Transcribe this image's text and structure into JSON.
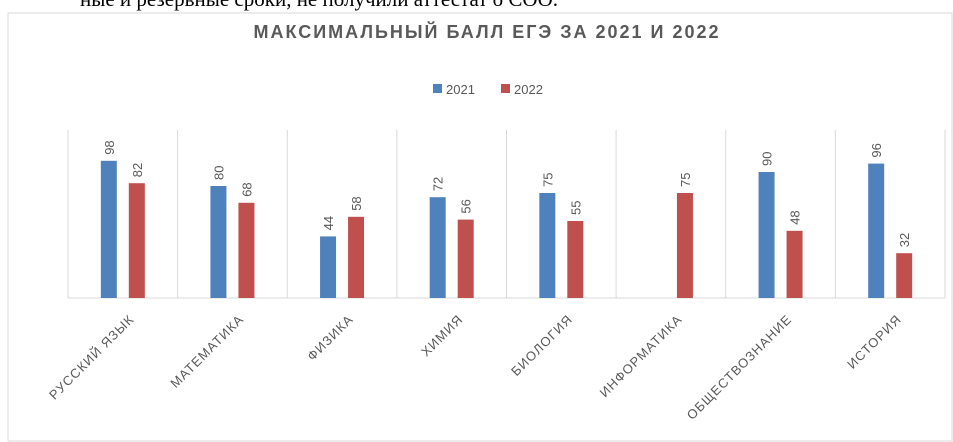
{
  "text_above": "ные и резервные сроки, не получили аттестат о СОО.",
  "chart_data": {
    "type": "bar",
    "title": "МАКСИМАЛЬНЫЙ БАЛЛ ЕГЭ ЗА 2021 И 2022",
    "categories": [
      "РУССКИЙ ЯЗЫК",
      "МАТЕМАТИКА",
      "ФИЗИКА",
      "ХИМИЯ",
      "БИОЛОГИЯ",
      "ИНФОРМАТИКА",
      "ОБЩЕСТВОЗНАНИЕ",
      "ИСТОРИЯ"
    ],
    "series": [
      {
        "name": "2021",
        "color": "#4f81bd",
        "values": [
          98,
          80,
          44,
          72,
          75,
          null,
          90,
          96
        ]
      },
      {
        "name": "2022",
        "color": "#c0504d",
        "values": [
          82,
          68,
          58,
          56,
          55,
          75,
          48,
          32
        ]
      }
    ],
    "ylim": [
      0,
      120
    ],
    "legend": "top",
    "data_labels": true
  }
}
